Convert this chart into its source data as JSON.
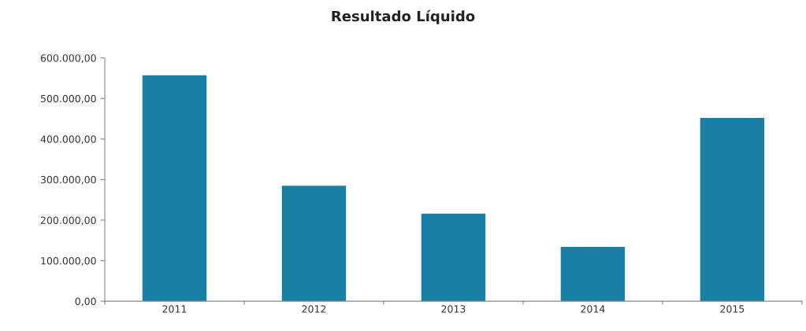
{
  "chart_data": {
    "type": "bar",
    "title": "Resultado Líquido",
    "categories": [
      "2011",
      "2012",
      "2013",
      "2014",
      "2015"
    ],
    "values": [
      557000,
      285000,
      216000,
      134000,
      452000
    ],
    "color": "#1a7fa5",
    "ylim": [
      0,
      600000
    ],
    "yticks": [
      {
        "value": 0,
        "label": "0,00"
      },
      {
        "value": 100000,
        "label": "100.000,00"
      },
      {
        "value": 200000,
        "label": "200.000,00"
      },
      {
        "value": 300000,
        "label": "300.000,00"
      },
      {
        "value": 400000,
        "label": "400.000,00"
      },
      {
        "value": 500000,
        "label": "500.000,00"
      },
      {
        "value": 600000,
        "label": "600.000,00"
      }
    ],
    "grid": false
  }
}
